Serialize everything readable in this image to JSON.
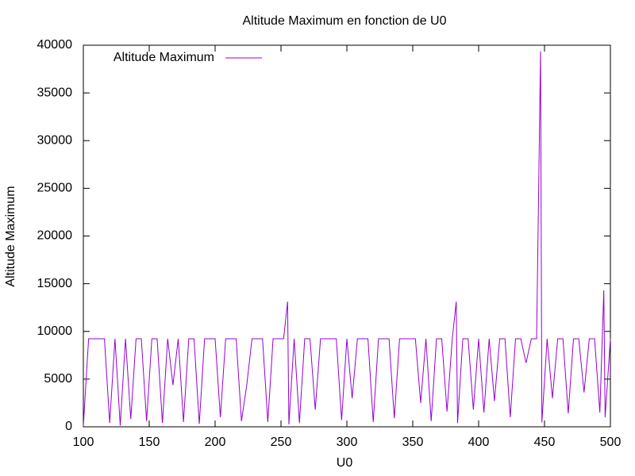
{
  "chart_data": {
    "type": "line",
    "title": "Altitude Maximum en fonction de U0",
    "xlabel": "U0",
    "ylabel": "Altitude Maximum",
    "x": [
      100,
      104,
      108,
      112,
      116,
      120,
      124,
      128,
      132,
      136,
      140,
      144,
      148,
      152,
      156,
      160,
      164,
      168,
      172,
      176,
      180,
      184,
      188,
      192,
      196,
      200,
      204,
      208,
      212,
      216,
      220,
      224,
      228,
      232,
      236,
      240,
      244,
      248,
      252,
      255,
      256,
      260,
      264,
      268,
      272,
      276,
      280,
      284,
      288,
      292,
      296,
      300,
      304,
      308,
      312,
      316,
      320,
      324,
      328,
      332,
      336,
      340,
      344,
      348,
      352,
      356,
      360,
      364,
      368,
      372,
      376,
      380,
      383,
      384,
      388,
      392,
      396,
      400,
      404,
      408,
      412,
      416,
      420,
      424,
      428,
      432,
      436,
      440,
      444,
      447,
      448,
      452,
      456,
      460,
      464,
      468,
      472,
      476,
      480,
      484,
      488,
      492,
      495,
      496,
      500
    ],
    "series": [
      {
        "name": "Altitude Maximum",
        "color": "#9400d3",
        "values": [
          100,
          9232,
          9232,
          9232,
          9232,
          400,
          9232,
          128,
          9232,
          800,
          9232,
          9232,
          600,
          9232,
          9232,
          400,
          9232,
          4372,
          9232,
          500,
          9232,
          9232,
          300,
          9232,
          9232,
          9232,
          1000,
          9232,
          9232,
          9232,
          600,
          4372,
          9232,
          9232,
          9232,
          500,
          9232,
          9232,
          9232,
          13120,
          256,
          9232,
          400,
          9232,
          9232,
          1800,
          9232,
          9232,
          9232,
          9232,
          700,
          9232,
          3000,
          9232,
          9232,
          9232,
          500,
          9232,
          9232,
          9232,
          900,
          9232,
          9232,
          9232,
          9232,
          2500,
          9232,
          600,
          9232,
          9232,
          1600,
          9232,
          13120,
          384,
          9232,
          9232,
          1800,
          9232,
          1500,
          9232,
          2700,
          9232,
          9232,
          1000,
          9232,
          9232,
          6700,
          9232,
          9232,
          39364,
          448,
          9232,
          3000,
          9232,
          9232,
          1400,
          9232,
          9232,
          3600,
          9232,
          9232,
          1500,
          14308,
          1000,
          9232
        ]
      }
    ],
    "xlim": [
      100,
      500
    ],
    "xticks": [
      100,
      150,
      200,
      250,
      300,
      350,
      400,
      450,
      500
    ],
    "ylim": [
      0,
      40000
    ],
    "yticks": [
      0,
      5000,
      10000,
      15000,
      20000,
      25000,
      30000,
      35000,
      40000
    ],
    "legend": "top-left"
  }
}
